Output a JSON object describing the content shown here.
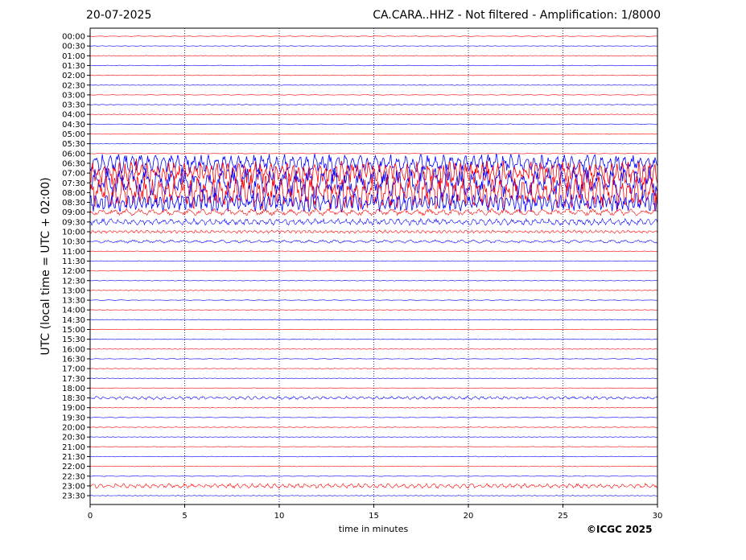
{
  "header": {
    "date": "20-07-2025",
    "title": "CA.CARA..HHZ - Not filtered - Amplification: 1/8000"
  },
  "footer": {
    "credit": "©ICGC 2025"
  },
  "colors": {
    "red_trace": "#ff0000",
    "blue_trace": "#0000ff",
    "frame": "#000000",
    "grid": "#000080"
  },
  "chart_data": {
    "type": "line",
    "title": "CA.CARA..HHZ - Not filtered - Amplification: 1/8000",
    "xlabel": "time in minutes",
    "ylabel": "UTC (local time = UTC + 02:00)",
    "xlim": [
      0,
      30
    ],
    "x_ticks": [
      0,
      5,
      10,
      15,
      20,
      25,
      30
    ],
    "y_ticks": [
      "00:00",
      "00:30",
      "01:00",
      "01:30",
      "02:00",
      "02:30",
      "03:00",
      "03:30",
      "04:00",
      "04:30",
      "05:00",
      "05:30",
      "06:00",
      "06:30",
      "07:00",
      "07:30",
      "08:00",
      "08:30",
      "09:00",
      "09:30",
      "10:00",
      "10:30",
      "11:00",
      "11:30",
      "12:00",
      "12:30",
      "13:00",
      "13:30",
      "14:00",
      "14:30",
      "15:00",
      "15:30",
      "16:00",
      "16:30",
      "17:00",
      "17:30",
      "18:00",
      "18:30",
      "19:00",
      "19:30",
      "20:00",
      "20:30",
      "21:00",
      "21:30",
      "22:00",
      "22:30",
      "23:00",
      "23:30"
    ],
    "trace_colors": [
      "#ff0000",
      "#0000ff"
    ],
    "grid": true,
    "grid_style": "dotted vertical lines every 5 minutes",
    "activity": [
      {
        "row": "06:30",
        "level": 0.35
      },
      {
        "row": "07:00",
        "level": 0.45,
        "burst": [
          1.5,
          3.5
        ]
      },
      {
        "row": "07:30",
        "level": 0.6
      },
      {
        "row": "08:00",
        "level": 0.65
      },
      {
        "row": "08:30",
        "level": 0.35
      },
      {
        "row": "09:00",
        "level": 0.12
      },
      {
        "row": "09:30",
        "level": 0.12
      },
      {
        "row": "10:00",
        "level": 0.05
      },
      {
        "row": "10:30",
        "level": 0.05
      },
      {
        "row": "18:30",
        "level": 0.05
      },
      {
        "row": "23:00",
        "level": 0.08
      }
    ]
  }
}
